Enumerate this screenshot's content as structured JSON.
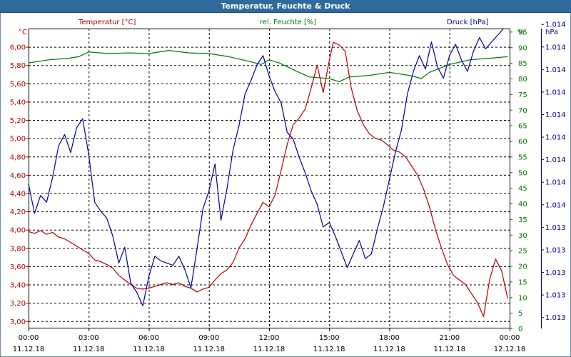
{
  "window": {
    "title": "Temperatur, Feuchte & Druck"
  },
  "colors": {
    "temperature": "#b30000",
    "humidity": "#007800",
    "pressure": "#000099",
    "grid": "#000000",
    "frame": "#6e8aa6"
  },
  "chart_data": {
    "type": "line",
    "title": "Temperatur, Feuchte & Druck",
    "legend": [
      "Temperatur [°C]",
      "rel. Feuchte [%]",
      "Druck [hPa]"
    ],
    "axes": {
      "temperature": {
        "unit": "°C",
        "range": [
          2.92,
          6.2
        ],
        "ticks": [
          "3,00",
          "3,20",
          "3,40",
          "3,60",
          "3,80",
          "4,00",
          "4,20",
          "4,40",
          "4,60",
          "4,80",
          "5,00",
          "5,20",
          "5,40",
          "5,60",
          "5,80",
          "6,00"
        ]
      },
      "humidity": {
        "unit": "%",
        "range": [
          0,
          96
        ],
        "ticks": [
          "0",
          "5",
          "10",
          "15",
          "20",
          "25",
          "30",
          "35",
          "40",
          "45",
          "50",
          "55",
          "60",
          "65",
          "70",
          "75",
          "80",
          "85",
          "90",
          "95"
        ]
      },
      "pressure": {
        "unit": "hPa",
        "ticks": [
          "1.013",
          "1.013",
          "1.013",
          "1.013",
          "1.013",
          "1.014",
          "1.014",
          "1.014",
          "1.014",
          "1.014",
          "1.014",
          "1.014",
          "1.014",
          "1.014"
        ]
      }
    },
    "x_ticks": [
      {
        "time": "00:00",
        "date": "11.12.18"
      },
      {
        "time": "03:00",
        "date": "11.12.18"
      },
      {
        "time": "06:00",
        "date": "11.12.18"
      },
      {
        "time": "09:00",
        "date": "11.12.18"
      },
      {
        "time": "12:00",
        "date": "11.12.18"
      },
      {
        "time": "15:00",
        "date": "11.12.18"
      },
      {
        "time": "18:00",
        "date": "11.12.18"
      },
      {
        "time": "21:00",
        "date": "11.12.18"
      },
      {
        "time": "00:00",
        "date": "12.12.18"
      }
    ],
    "x_range_hours": [
      0,
      24
    ],
    "pressure_index_range": [
      0.5,
      13.8
    ],
    "series": [
      {
        "name": "Temperatur [°C]",
        "axis": "temperature",
        "points": [
          [
            0,
            3.98
          ],
          [
            0.3,
            3.96
          ],
          [
            0.6,
            3.99
          ],
          [
            0.9,
            3.95
          ],
          [
            1.2,
            3.97
          ],
          [
            1.5,
            3.92
          ],
          [
            1.8,
            3.9
          ],
          [
            2.1,
            3.86
          ],
          [
            2.4,
            3.82
          ],
          [
            2.7,
            3.78
          ],
          [
            3.0,
            3.74
          ],
          [
            3.3,
            3.67
          ],
          [
            3.6,
            3.65
          ],
          [
            3.9,
            3.62
          ],
          [
            4.2,
            3.58
          ],
          [
            4.5,
            3.5
          ],
          [
            4.8,
            3.45
          ],
          [
            5.1,
            3.4
          ],
          [
            5.4,
            3.36
          ],
          [
            5.7,
            3.35
          ],
          [
            6.0,
            3.36
          ],
          [
            6.3,
            3.38
          ],
          [
            6.6,
            3.4
          ],
          [
            6.9,
            3.42
          ],
          [
            7.2,
            3.4
          ],
          [
            7.5,
            3.42
          ],
          [
            7.8,
            3.38
          ],
          [
            8.1,
            3.36
          ],
          [
            8.4,
            3.32
          ],
          [
            8.7,
            3.35
          ],
          [
            9.0,
            3.37
          ],
          [
            9.3,
            3.45
          ],
          [
            9.6,
            3.52
          ],
          [
            9.9,
            3.56
          ],
          [
            10.2,
            3.64
          ],
          [
            10.5,
            3.8
          ],
          [
            10.8,
            3.9
          ],
          [
            11.1,
            4.05
          ],
          [
            11.4,
            4.18
          ],
          [
            11.7,
            4.3
          ],
          [
            12.0,
            4.25
          ],
          [
            12.3,
            4.38
          ],
          [
            12.6,
            4.65
          ],
          [
            12.9,
            4.93
          ],
          [
            13.2,
            5.15
          ],
          [
            13.5,
            5.22
          ],
          [
            13.8,
            5.32
          ],
          [
            14.1,
            5.55
          ],
          [
            14.4,
            5.8
          ],
          [
            14.7,
            5.5
          ],
          [
            15.0,
            5.85
          ],
          [
            15.2,
            6.05
          ],
          [
            15.5,
            6.02
          ],
          [
            15.8,
            5.95
          ],
          [
            16.1,
            5.55
          ],
          [
            16.4,
            5.3
          ],
          [
            16.7,
            5.15
          ],
          [
            17.0,
            5.05
          ],
          [
            17.3,
            5.0
          ],
          [
            17.6,
            4.98
          ],
          [
            17.9,
            4.93
          ],
          [
            18.2,
            4.87
          ],
          [
            18.5,
            4.85
          ],
          [
            18.8,
            4.8
          ],
          [
            19.1,
            4.7
          ],
          [
            19.4,
            4.6
          ],
          [
            19.7,
            4.45
          ],
          [
            20.0,
            4.25
          ],
          [
            20.3,
            4.0
          ],
          [
            20.6,
            3.8
          ],
          [
            20.9,
            3.62
          ],
          [
            21.2,
            3.5
          ],
          [
            21.5,
            3.45
          ],
          [
            21.8,
            3.4
          ],
          [
            22.1,
            3.3
          ],
          [
            22.4,
            3.2
          ],
          [
            22.7,
            3.05
          ],
          [
            23.0,
            3.45
          ],
          [
            23.3,
            3.68
          ],
          [
            23.6,
            3.55
          ],
          [
            23.9,
            3.25
          ]
        ]
      },
      {
        "name": "rel. Feuchte [%]",
        "axis": "humidity",
        "points": [
          [
            0,
            85.0
          ],
          [
            1.0,
            86.0
          ],
          [
            2.0,
            86.5
          ],
          [
            2.5,
            87.0
          ],
          [
            3.0,
            88.5
          ],
          [
            4.0,
            88.0
          ],
          [
            5.0,
            88.2
          ],
          [
            6.0,
            88.0
          ],
          [
            7.0,
            89.0
          ],
          [
            8.0,
            88.2
          ],
          [
            9.0,
            88.0
          ],
          [
            10.0,
            87.0
          ],
          [
            11.0,
            85.5
          ],
          [
            11.6,
            84.5
          ],
          [
            12.0,
            86.0
          ],
          [
            12.5,
            85.0
          ],
          [
            13.0,
            83.5
          ],
          [
            13.5,
            82.0
          ],
          [
            14.0,
            80.5
          ],
          [
            15.0,
            80.0
          ],
          [
            15.5,
            79.0
          ],
          [
            16.0,
            80.5
          ],
          [
            17.0,
            81.0
          ],
          [
            18.0,
            82.0
          ],
          [
            19.0,
            81.0
          ],
          [
            19.6,
            80.0
          ],
          [
            20.0,
            82.0
          ],
          [
            21.0,
            84.5
          ],
          [
            22.0,
            86.0
          ],
          [
            23.0,
            86.5
          ],
          [
            23.9,
            87.0
          ]
        ]
      },
      {
        "name": "Druck [hPa]",
        "axis": "pressure",
        "points": [
          [
            0,
            6.9
          ],
          [
            0.3,
            5.6
          ],
          [
            0.6,
            6.4
          ],
          [
            0.9,
            6.1
          ],
          [
            1.2,
            7.2
          ],
          [
            1.5,
            8.6
          ],
          [
            1.8,
            9.1
          ],
          [
            2.1,
            8.3
          ],
          [
            2.4,
            9.4
          ],
          [
            2.7,
            9.8
          ],
          [
            3.0,
            8.2
          ],
          [
            3.3,
            6.1
          ],
          [
            3.6,
            5.7
          ],
          [
            3.9,
            5.4
          ],
          [
            4.2,
            4.6
          ],
          [
            4.5,
            3.4
          ],
          [
            4.8,
            4.1
          ],
          [
            5.1,
            2.5
          ],
          [
            5.4,
            2.1
          ],
          [
            5.7,
            1.5
          ],
          [
            6.0,
            2.8
          ],
          [
            6.3,
            3.7
          ],
          [
            6.6,
            3.5
          ],
          [
            6.9,
            3.4
          ],
          [
            7.2,
            3.3
          ],
          [
            7.5,
            3.7
          ],
          [
            7.8,
            3.1
          ],
          [
            8.1,
            2.3
          ],
          [
            8.4,
            4.0
          ],
          [
            8.7,
            5.8
          ],
          [
            9.0,
            6.6
          ],
          [
            9.3,
            7.8
          ],
          [
            9.6,
            5.3
          ],
          [
            9.9,
            6.7
          ],
          [
            10.2,
            8.4
          ],
          [
            10.5,
            9.5
          ],
          [
            10.8,
            10.9
          ],
          [
            11.1,
            11.5
          ],
          [
            11.4,
            12.2
          ],
          [
            11.7,
            12.6
          ],
          [
            12.0,
            11.7
          ],
          [
            12.3,
            11.0
          ],
          [
            12.6,
            10.5
          ],
          [
            12.9,
            9.2
          ],
          [
            13.2,
            8.9
          ],
          [
            13.5,
            8.1
          ],
          [
            13.8,
            7.4
          ],
          [
            14.1,
            6.6
          ],
          [
            14.4,
            6.0
          ],
          [
            14.7,
            5.0
          ],
          [
            15.0,
            5.2
          ],
          [
            15.3,
            4.6
          ],
          [
            15.6,
            3.9
          ],
          [
            15.9,
            3.2
          ],
          [
            16.2,
            3.8
          ],
          [
            16.5,
            4.4
          ],
          [
            16.8,
            3.6
          ],
          [
            17.1,
            3.8
          ],
          [
            17.4,
            4.9
          ],
          [
            17.7,
            5.9
          ],
          [
            18.0,
            7.1
          ],
          [
            18.3,
            8.3
          ],
          [
            18.6,
            9.3
          ],
          [
            18.9,
            10.9
          ],
          [
            19.2,
            11.9
          ],
          [
            19.5,
            12.6
          ],
          [
            19.8,
            12.0
          ],
          [
            20.1,
            13.2
          ],
          [
            20.4,
            12.1
          ],
          [
            20.7,
            11.6
          ],
          [
            21.0,
            12.6
          ],
          [
            21.3,
            13.1
          ],
          [
            21.6,
            12.4
          ],
          [
            21.9,
            11.9
          ],
          [
            22.2,
            12.8
          ],
          [
            22.5,
            13.4
          ],
          [
            22.8,
            12.9
          ],
          [
            23.1,
            13.2
          ],
          [
            23.4,
            13.5
          ],
          [
            23.7,
            13.8
          ]
        ]
      }
    ]
  }
}
